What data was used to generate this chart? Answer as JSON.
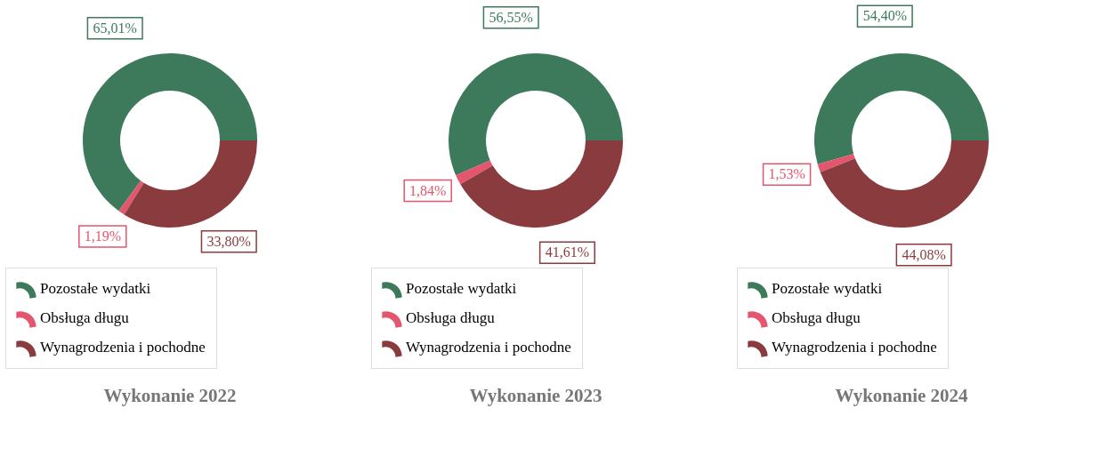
{
  "chart_data": [
    {
      "type": "donut",
      "title": "Wykonanie 2022",
      "categories": [
        "Pozostałe wydatki",
        "Obsługa długu",
        "Wynagrodzenia i pochodne"
      ],
      "values": [
        65.01,
        1.19,
        33.8
      ],
      "colors": [
        "#3d7a5c",
        "#e4566e",
        "#8a3b3e"
      ],
      "value_labels": [
        "65,01%",
        "1,19%",
        "33,80%"
      ],
      "legend": "bottom"
    },
    {
      "type": "donut",
      "title": "Wykonanie 2023",
      "categories": [
        "Pozostałe wydatki",
        "Obsługa długu",
        "Wynagrodzenia i pochodne"
      ],
      "values": [
        56.55,
        1.84,
        41.61
      ],
      "colors": [
        "#3d7a5c",
        "#e4566e",
        "#8a3b3e"
      ],
      "value_labels": [
        "56,55%",
        "1,84%",
        "41,61%"
      ],
      "legend": "bottom"
    },
    {
      "type": "donut",
      "title": "Wykonanie 2024",
      "categories": [
        "Pozostałe wydatki",
        "Obsługa długu",
        "Wynagrodzenia i pochodne"
      ],
      "values": [
        54.4,
        1.53,
        44.08
      ],
      "colors": [
        "#3d7a5c",
        "#e4566e",
        "#8a3b3e"
      ],
      "value_labels": [
        "54,40%",
        "1,53%",
        "44,08%"
      ],
      "legend": "bottom"
    }
  ]
}
